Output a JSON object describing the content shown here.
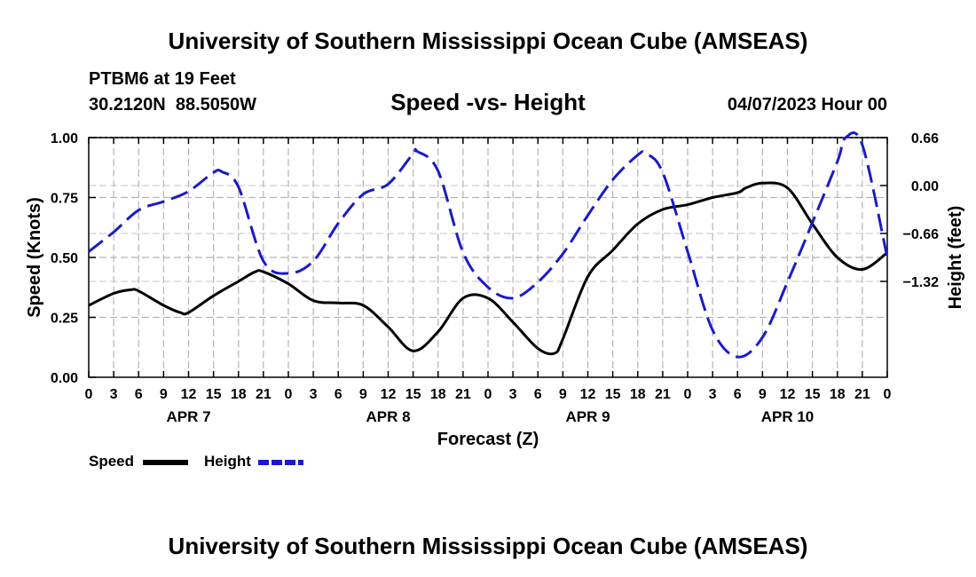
{
  "header": {
    "title": "University of Southern Mississippi Ocean Cube (AMSEAS)",
    "station": "PTBM6 at 19 Feet",
    "coords": "30.2120N  88.5050W",
    "subtitle": "Speed -vs- Height",
    "timestamp": "04/07/2023 Hour 00"
  },
  "footer": {
    "title": "University of Southern Mississippi Ocean Cube (AMSEAS)"
  },
  "chart_data": {
    "type": "line",
    "title": "Speed -vs- Height",
    "xlabel": "Forecast (Z)",
    "ylabel": "Speed (Knots)",
    "y2label": "Height (feet)",
    "xlim": [
      0,
      96
    ],
    "ylim": [
      0,
      1.0
    ],
    "y2lim": [
      -2.64,
      0.66
    ],
    "x_tick_labels": [
      "0",
      "3",
      "6",
      "9",
      "12",
      "15",
      "18",
      "21",
      "0",
      "3",
      "6",
      "9",
      "12",
      "15",
      "18",
      "21",
      "0",
      "3",
      "6",
      "9",
      "12",
      "15",
      "18",
      "21",
      "0",
      "3",
      "6",
      "9",
      "12",
      "15",
      "18",
      "21",
      "0"
    ],
    "x_tick_hours": [
      0,
      3,
      6,
      9,
      12,
      15,
      18,
      21,
      24,
      27,
      30,
      33,
      36,
      39,
      42,
      45,
      48,
      51,
      54,
      57,
      60,
      63,
      66,
      69,
      72,
      75,
      78,
      81,
      84,
      87,
      90,
      93,
      96
    ],
    "day_labels": [
      {
        "label": "APR 7",
        "hour": 12
      },
      {
        "label": "APR 8",
        "hour": 36
      },
      {
        "label": "APR 9",
        "hour": 60
      },
      {
        "label": "APR 10",
        "hour": 84
      }
    ],
    "y_ticks": [
      "0.00",
      "0.25",
      "0.50",
      "0.75",
      "1.00"
    ],
    "y_tick_values": [
      0,
      0.25,
      0.5,
      0.75,
      1.0
    ],
    "y2_ticks": [
      "0.66",
      "0.00",
      "−0.66",
      "−1.32"
    ],
    "y2_tick_values": [
      0.66,
      0.0,
      -0.66,
      -1.32
    ],
    "grid": true,
    "legend_position": "bottom-left",
    "series": [
      {
        "name": "Speed",
        "axis": "left",
        "color": "#000000",
        "dash": "solid",
        "x": [
          0,
          3,
          5,
          6,
          9,
          11,
          12,
          15,
          18,
          20,
          21,
          24,
          27,
          30,
          33,
          36,
          39,
          42,
          45,
          48,
          51,
          54,
          56,
          57,
          60,
          63,
          66,
          69,
          72,
          75,
          78,
          79,
          81,
          84,
          87,
          90,
          93,
          96
        ],
        "y": [
          0.3,
          0.35,
          0.365,
          0.36,
          0.3,
          0.27,
          0.27,
          0.34,
          0.4,
          0.44,
          0.44,
          0.39,
          0.32,
          0.31,
          0.3,
          0.21,
          0.11,
          0.19,
          0.33,
          0.33,
          0.23,
          0.12,
          0.1,
          0.16,
          0.42,
          0.53,
          0.64,
          0.7,
          0.72,
          0.75,
          0.77,
          0.79,
          0.81,
          0.79,
          0.64,
          0.5,
          0.45,
          0.52
        ]
      },
      {
        "name": "Height",
        "axis": "right",
        "color": "#1a1acc",
        "dash": "dashed",
        "x": [
          0,
          3,
          6,
          9,
          12,
          15,
          16,
          18,
          21,
          24,
          27,
          30,
          33,
          36,
          39,
          39.5,
          42,
          45,
          48,
          51,
          54,
          57,
          60,
          63,
          66,
          67,
          69,
          72,
          75,
          78,
          81,
          84,
          87,
          90,
          91,
          93,
          96
        ],
        "y": [
          -0.91,
          -0.64,
          -0.34,
          -0.22,
          -0.08,
          0.18,
          0.19,
          -0.02,
          -1.04,
          -1.21,
          -1.04,
          -0.52,
          -0.12,
          0.02,
          0.44,
          0.47,
          0.2,
          -0.92,
          -1.4,
          -1.55,
          -1.33,
          -0.94,
          -0.41,
          0.08,
          0.42,
          0.44,
          0.18,
          -0.91,
          -1.99,
          -2.36,
          -2.09,
          -1.33,
          -0.51,
          0.33,
          0.66,
          0.56,
          -0.99
        ]
      }
    ]
  }
}
